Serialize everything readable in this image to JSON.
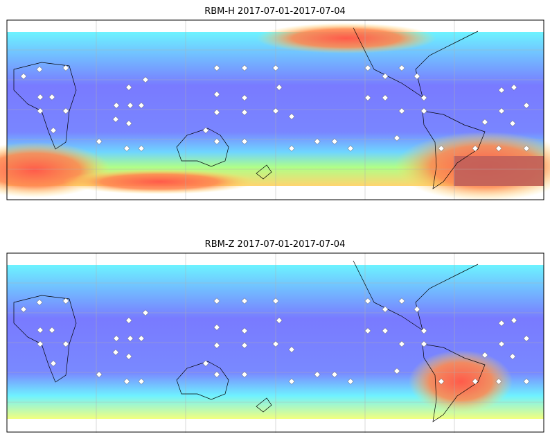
{
  "panels": [
    {
      "title": "RBM-H 2017-07-01-2017-07-04"
    },
    {
      "title": "RBM-Z 2017-07-01-2017-07-04"
    }
  ]
}
